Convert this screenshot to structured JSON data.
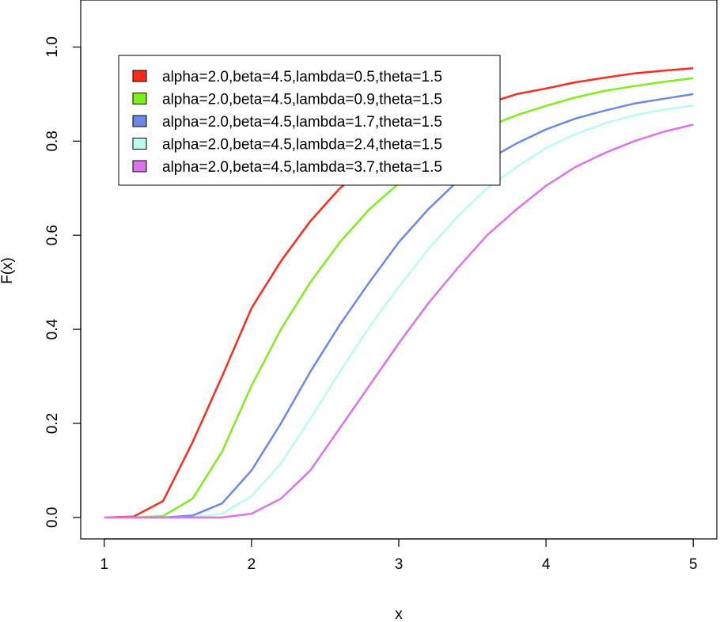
{
  "chart_data": {
    "type": "line",
    "title": "",
    "xlabel": "x",
    "ylabel": "F(x)",
    "xlim": [
      0.84,
      5.16
    ],
    "ylim": [
      -0.0456,
      1.1
    ],
    "xticks": [
      1,
      2,
      3,
      4,
      5
    ],
    "xtick_labels": [
      "1",
      "2",
      "3",
      "4",
      "5"
    ],
    "yticks": [
      0.0,
      0.2,
      0.4,
      0.6,
      0.8,
      1.0
    ],
    "ytick_labels": [
      "0.0",
      "0.2",
      "0.4",
      "0.6",
      "0.8",
      "1.0"
    ],
    "grid": false,
    "legend_position": "top-left",
    "x": [
      1.0,
      1.2,
      1.4,
      1.6,
      1.8,
      2.0,
      2.2,
      2.4,
      2.6,
      2.8,
      3.0,
      3.2,
      3.4,
      3.6,
      3.8,
      4.0,
      4.2,
      4.4,
      4.6,
      4.8,
      5.0
    ],
    "series": [
      {
        "name": "alpha=2.0,beta=4.5,lambda=0.5,theta=1.5",
        "color": "#ff2a1a",
        "values": [
          0.0,
          0.002,
          0.035,
          0.16,
          0.3,
          0.445,
          0.545,
          0.63,
          0.7,
          0.75,
          0.8,
          0.835,
          0.86,
          0.88,
          0.9,
          0.912,
          0.925,
          0.935,
          0.944,
          0.95,
          0.955
        ]
      },
      {
        "name": "alpha=2.0,beta=4.5,lambda=0.9,theta=1.5",
        "color": "#7fee1c",
        "values": [
          0.0,
          0.0,
          0.003,
          0.04,
          0.14,
          0.28,
          0.4,
          0.5,
          0.585,
          0.655,
          0.71,
          0.76,
          0.8,
          0.83,
          0.855,
          0.875,
          0.893,
          0.907,
          0.917,
          0.926,
          0.934
        ]
      },
      {
        "name": "alpha=2.0,beta=4.5,lambda=1.7,theta=1.5",
        "color": "#6a88e8",
        "values": [
          0.0,
          0.0,
          0.0,
          0.004,
          0.03,
          0.1,
          0.2,
          0.31,
          0.41,
          0.5,
          0.585,
          0.655,
          0.715,
          0.76,
          0.795,
          0.825,
          0.848,
          0.865,
          0.88,
          0.89,
          0.9
        ]
      },
      {
        "name": "alpha=2.0,beta=4.5,lambda=2.4,theta=1.5",
        "color": "#b8fdee",
        "values": [
          0.0,
          0.0,
          0.0,
          0.0,
          0.008,
          0.045,
          0.115,
          0.21,
          0.31,
          0.405,
          0.49,
          0.57,
          0.64,
          0.7,
          0.745,
          0.785,
          0.815,
          0.838,
          0.855,
          0.867,
          0.876
        ]
      },
      {
        "name": "alpha=2.0,beta=4.5,lambda=3.7,theta=1.5",
        "color": "#dd72ec",
        "values": [
          0.0,
          0.0,
          0.0,
          0.0,
          0.0,
          0.008,
          0.04,
          0.1,
          0.19,
          0.28,
          0.37,
          0.455,
          0.53,
          0.6,
          0.655,
          0.705,
          0.745,
          0.775,
          0.8,
          0.82,
          0.835
        ]
      }
    ]
  }
}
